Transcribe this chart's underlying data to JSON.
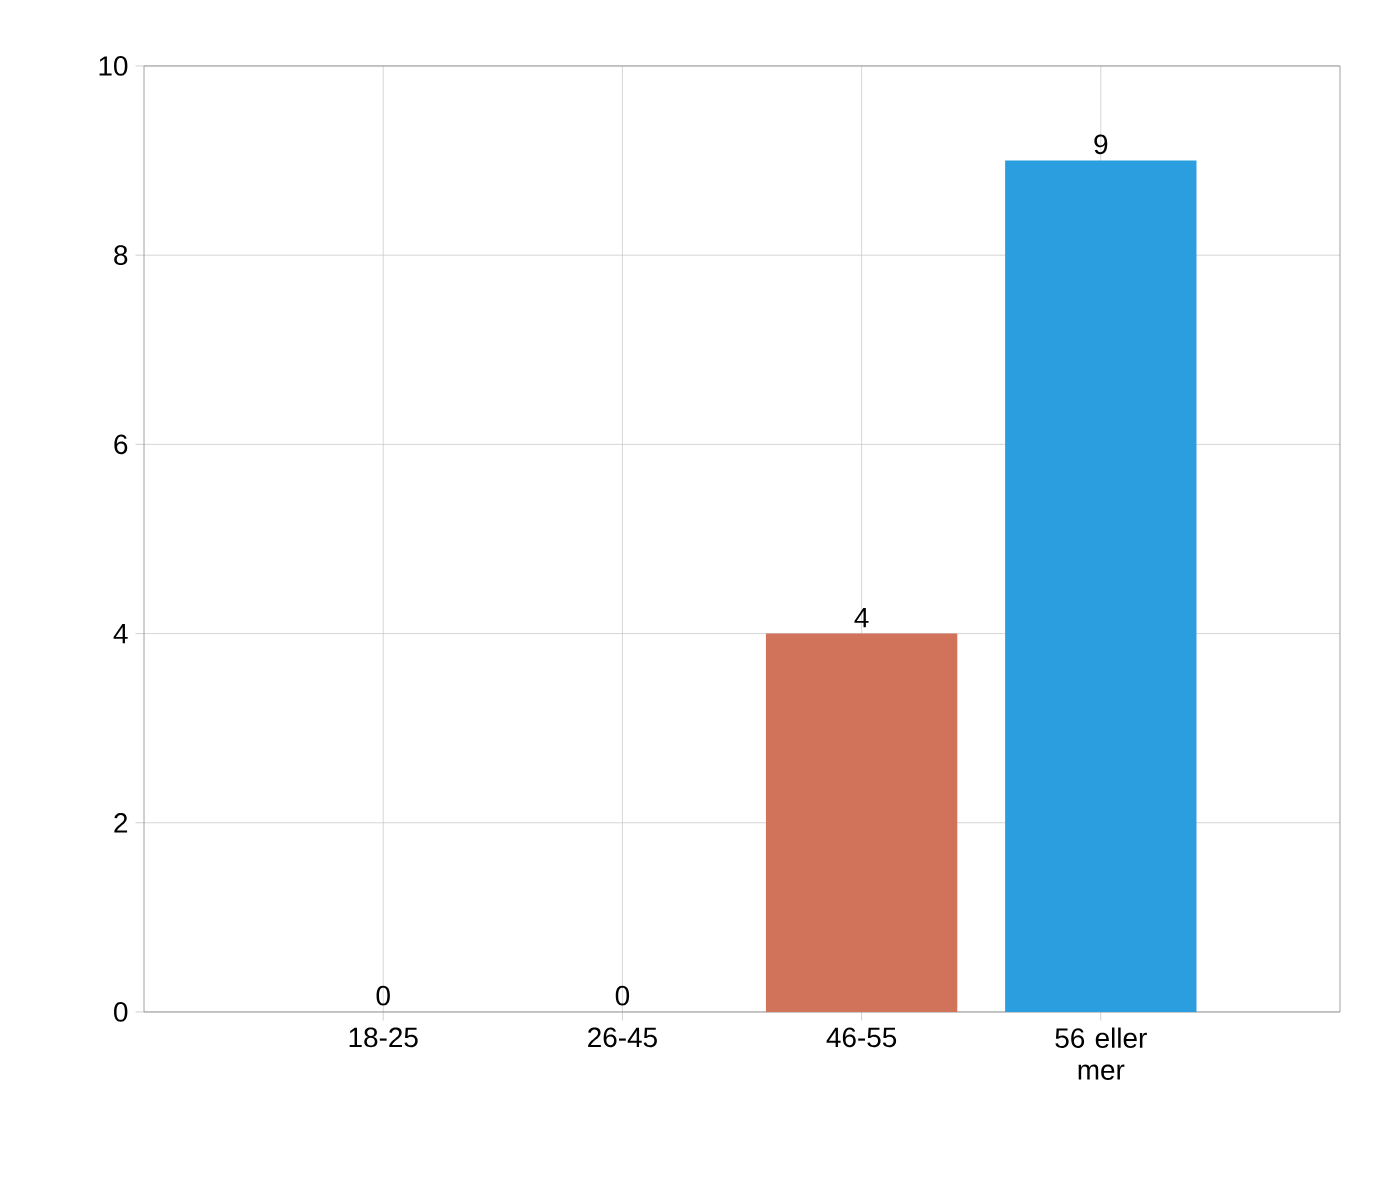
{
  "chart_data": {
    "type": "bar",
    "categories": [
      "18-25",
      "26-45",
      "46-55",
      "56 eller mer"
    ],
    "values": [
      0,
      0,
      4,
      9
    ],
    "colors": [
      "#e8835f",
      "#e8835f",
      "#d0735a",
      "#2b9ee0"
    ],
    "ylim": [
      0,
      10
    ],
    "yticks": [
      0,
      2,
      4,
      6,
      8,
      10
    ],
    "grid": true,
    "data_labels": true
  }
}
